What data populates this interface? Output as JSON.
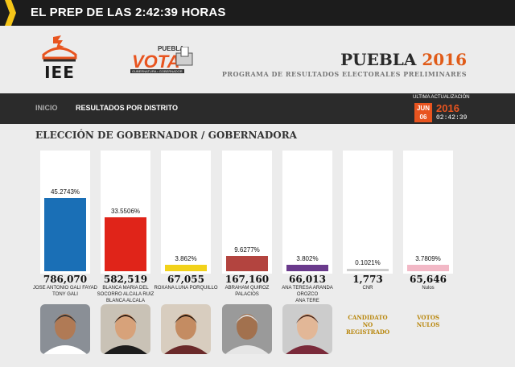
{
  "header": {
    "title": "EL PREP DE LAS 2:42:39 HORAS"
  },
  "logos": {
    "iee": "IEE",
    "vota_word": "VOTA",
    "vota_top": "PUEBLA",
    "vota_sub": "GUBERNATURA • GOBERNADOR"
  },
  "brand": {
    "state": "PUEBLA",
    "year": "2016",
    "program": "PROGRAMA DE RESULTADOS ELECTORALES PRELIMINARES"
  },
  "nav": {
    "items": [
      "INICIO",
      "RESULTADOS POR DISTRITO"
    ],
    "update_label": "ULTIMA ACTUALIZACIÓN",
    "month": "JUN",
    "day": "06",
    "year": "2016",
    "time": "02:42:39"
  },
  "page_title": "ELECCIÓN DE GOBERNADOR / GOBERNADORA",
  "colors": {
    "accent": "#e8541f",
    "header_bg": "#1c1c1c",
    "nav_bg": "#2b2b2b"
  },
  "chart_data": {
    "type": "bar",
    "categories": [
      "JOSE ANTONIO GALI FAYAD TONY GALI",
      "BLANCA MARIA DEL SOCORRO ALCALA RUIZ BLANCA ALCALA",
      "ROXANA LUNA PORQUILLO",
      "ABRAHAM QUIROZ PALACIOS",
      "ANA TERESA ARANDA OROZCO ANA TERE",
      "CNR",
      "Nulos"
    ],
    "values": [
      45.2743,
      33.5506,
      3.862,
      9.6277,
      3.802,
      0.1021,
      3.7809
    ],
    "ylim": [
      0,
      70
    ]
  },
  "candidates": [
    {
      "pct": "45.2743%",
      "votes": "786,070",
      "name1": "JOSE ANTONIO GALI FAYAD",
      "name2": "TONY GALI",
      "name3": "",
      "color": "#1a6fb6",
      "photo": "photo-gali"
    },
    {
      "pct": "33.5506%",
      "votes": "582,519",
      "name1": "BLANCA MARIA DEL",
      "name2": "SOCORRO ALCALA RUIZ",
      "name3": "BLANCA ALCALA",
      "color": "#e02419",
      "photo": "photo-alcala"
    },
    {
      "pct": "3.862%",
      "votes": "67,055",
      "name1": "ROXANA LUNA PORQUILLO",
      "name2": "",
      "name3": "",
      "color": "#f2d21a",
      "photo": "photo-luna"
    },
    {
      "pct": "9.6277%",
      "votes": "167,160",
      "name1": "ABRAHAM QUIROZ",
      "name2": "PALACIOS",
      "name3": "",
      "color": "#b3443f",
      "photo": "photo-quiroz"
    },
    {
      "pct": "3.802%",
      "votes": "66,013",
      "name1": "ANA TERESA ARANDA",
      "name2": "OROZCO",
      "name3": "ANA TERE",
      "color": "#6a3a8c",
      "photo": "photo-aranda"
    },
    {
      "pct": "0.1021%",
      "votes": "1,773",
      "name1": "CNR",
      "name2": "",
      "name3": "",
      "color": "#cccccc",
      "photo": ""
    },
    {
      "pct": "3.7809%",
      "votes": "65,646",
      "name1": "Nulos",
      "name2": "",
      "name3": "",
      "color": "#f2b8c6",
      "photo": ""
    }
  ],
  "no_photo_labels": {
    "cnr_line1": "CANDIDATO",
    "cnr_line2": "NO REGISTRADO",
    "nulos_line1": "VOTOS",
    "nulos_line2": "NULOS"
  }
}
